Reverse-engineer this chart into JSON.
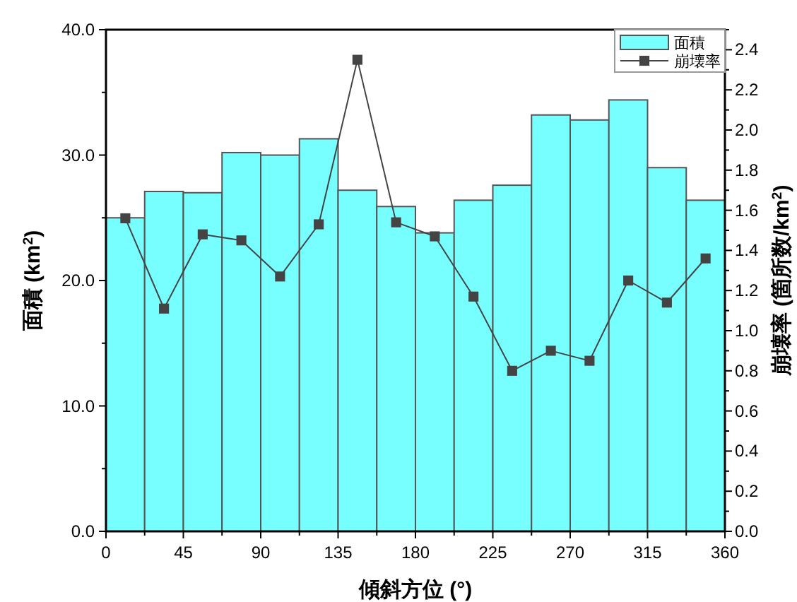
{
  "chart_data": {
    "type": "histogram",
    "xlabel": "傾斜方位 (°)",
    "ylabel": "面積 (km$^{2}$)",
    "y2label": "崩壊率 (箇所数/km$^{2}$)",
    "bins": [
      0,
      22.5,
      45,
      67.5,
      90,
      112.5,
      135,
      157.5,
      180,
      202.5,
      225,
      247.5,
      270,
      292.5,
      315,
      337.5,
      360
    ],
    "series": [
      {
        "name": "面積",
        "color": "#77ffff",
        "values": [
          25.0,
          27.1,
          27.0,
          30.2,
          30.0,
          31.3,
          27.2,
          25.9,
          23.8,
          26.4,
          27.6,
          33.2,
          32.8,
          34.4,
          29.0,
          26.4
        ]
      },
      {
        "name": "崩壊率",
        "type": "line",
        "axis": "y2",
        "color": "#444444",
        "x": [
          11.25,
          33.75,
          56.25,
          78.75,
          101.25,
          123.75,
          146.25,
          168.75,
          191.25,
          213.75,
          236.25,
          258.75,
          281.25,
          303.75,
          326.25,
          348.75
        ],
        "values": [
          1.56,
          1.11,
          1.48,
          1.45,
          1.27,
          1.53,
          2.35,
          1.54,
          1.47,
          1.17,
          0.8,
          0.9,
          0.85,
          1.25,
          1.14,
          1.36
        ]
      }
    ],
    "marker": "square",
    "line_style": "solid",
    "legend": "top right",
    "grid": false,
    "xlim": [
      0,
      360
    ],
    "xticks": [
      0,
      {
        "value": 22.5,
        "label": null
      },
      45,
      {
        "value": 67.5,
        "label": null
      },
      90,
      {
        "value": 112.5,
        "label": null
      },
      135,
      {
        "value": 157.5,
        "label": null
      },
      180,
      {
        "value": 202.5,
        "label": null
      },
      225,
      {
        "value": 247.5,
        "label": null
      },
      270,
      {
        "value": 292.5,
        "label": null
      },
      315,
      {
        "value": 337.5,
        "label": null
      },
      360
    ],
    "ylim": [
      0,
      40
    ],
    "yticks": [
      {
        "value": 0,
        "label": "0.0"
      },
      {
        "value": 5,
        "label": null
      },
      {
        "value": 10,
        "label": "10.0"
      },
      {
        "value": 15,
        "label": null
      },
      {
        "value": 20,
        "label": "20.0"
      },
      {
        "value": 25,
        "label": null
      },
      {
        "value": 30,
        "label": "30.0"
      },
      {
        "value": 35,
        "label": null
      },
      {
        "value": 40,
        "label": "40.0"
      }
    ],
    "y2lim": [
      0,
      2.5
    ],
    "y2ticks": [
      {
        "value": 0,
        "label": "0.0"
      },
      {
        "value": 0.1,
        "label": null
      },
      {
        "value": 0.2,
        "label": "0.2"
      },
      {
        "value": 0.3,
        "label": null
      },
      {
        "value": 0.4,
        "label": "0.4"
      },
      {
        "value": 0.5,
        "label": null
      },
      {
        "value": 0.6,
        "label": "0.6"
      },
      {
        "value": 0.7,
        "label": null
      },
      {
        "value": 0.8,
        "label": "0.8"
      },
      {
        "value": 0.9,
        "label": null
      },
      {
        "value": 1.0,
        "label": "1.0"
      },
      {
        "value": 1.1,
        "label": null
      },
      {
        "value": 1.2,
        "label": "1.2"
      },
      {
        "value": 1.3,
        "label": null
      },
      {
        "value": 1.4,
        "label": "1.4"
      },
      {
        "value": 1.5,
        "label": null
      },
      {
        "value": 1.6,
        "label": "1.6"
      },
      {
        "value": 1.7,
        "label": null
      },
      {
        "value": 1.8,
        "label": "1.8"
      },
      {
        "value": 1.9,
        "label": null
      },
      {
        "value": 2.0,
        "label": "2.0"
      },
      {
        "value": 2.1,
        "label": null
      },
      {
        "value": 2.2,
        "label": "2.2"
      },
      {
        "value": 2.3,
        "label": null
      },
      {
        "value": 2.4,
        "label": "2.4"
      },
      {
        "value": 2.5,
        "label": null
      }
    ]
  }
}
